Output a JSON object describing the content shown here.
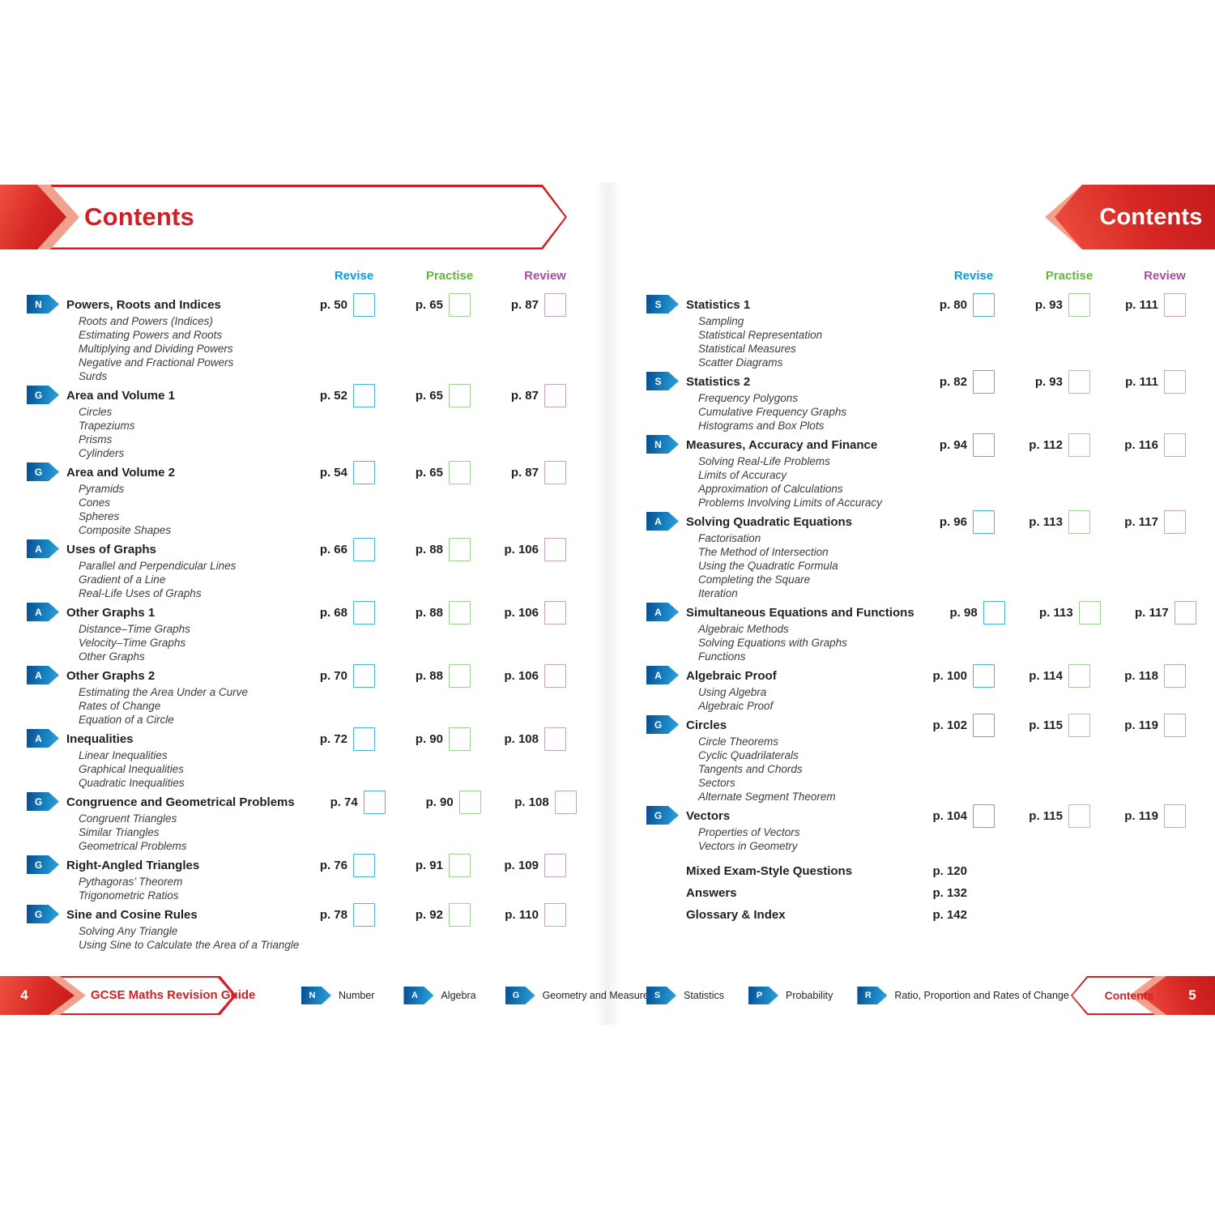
{
  "colors": {
    "red": "#d01f25",
    "red_light": "#f2a18e",
    "ink": "#231f20",
    "revise": "#0e9bd8",
    "practise": "#67b346",
    "review": "#a3509c",
    "badge_blue_dark": "#0a4c8c",
    "badge_blue_light": "#2ea5de",
    "checkbox_revise_border": "#45b5da",
    "checkbox_practise_border": "#9fcf92",
    "checkbox_review_border": "#c3a2c5"
  },
  "column_headers": [
    "Revise",
    "Practise",
    "Review"
  ],
  "left_page": {
    "header_title": "Contents",
    "entries": [
      {
        "badge": "N",
        "title": "Powers, Roots and Indices",
        "pages": [
          "p. 50",
          "p. 65",
          "p. 87"
        ],
        "subs": [
          "Roots and Powers (Indices)",
          "Estimating Powers and Roots",
          "Multiplying and Dividing Powers",
          "Negative and Fractional Powers",
          "Surds"
        ]
      },
      {
        "badge": "G",
        "title": "Area and Volume 1",
        "pages": [
          "p. 52",
          "p. 65",
          "p. 87"
        ],
        "subs": [
          "Circles",
          "Trapeziums",
          "Prisms",
          "Cylinders"
        ]
      },
      {
        "badge": "G",
        "title": "Area and Volume 2",
        "pages": [
          "p. 54",
          "p. 65",
          "p. 87"
        ],
        "subs": [
          "Pyramids",
          "Cones",
          "Spheres",
          "Composite Shapes"
        ]
      },
      {
        "badge": "A",
        "title": "Uses of Graphs",
        "pages": [
          "p. 66",
          "p. 88",
          "p. 106"
        ],
        "subs": [
          "Parallel and Perpendicular Lines",
          "Gradient of a Line",
          "Real-Life Uses of Graphs"
        ]
      },
      {
        "badge": "A",
        "title": "Other Graphs 1",
        "pages": [
          "p. 68",
          "p. 88",
          "p. 106"
        ],
        "subs": [
          "Distance–Time Graphs",
          "Velocity–Time Graphs",
          "Other Graphs"
        ]
      },
      {
        "badge": "A",
        "title": "Other Graphs 2",
        "pages": [
          "p. 70",
          "p. 88",
          "p. 106"
        ],
        "subs": [
          "Estimating the Area Under a Curve",
          "Rates of Change",
          "Equation of a Circle"
        ]
      },
      {
        "badge": "A",
        "title": "Inequalities",
        "pages": [
          "p. 72",
          "p. 90",
          "p. 108"
        ],
        "subs": [
          "Linear Inequalities",
          "Graphical Inequalities",
          "Quadratic Inequalities"
        ]
      },
      {
        "badge": "G",
        "title": "Congruence and Geometrical Problems",
        "pages": [
          "p. 74",
          "p. 90",
          "p. 108"
        ],
        "subs": [
          "Congruent Triangles",
          "Similar Triangles",
          "Geometrical Problems"
        ]
      },
      {
        "badge": "G",
        "title": "Right-Angled Triangles",
        "pages": [
          "p. 76",
          "p. 91",
          "p. 109"
        ],
        "subs": [
          "Pythagoras’ Theorem",
          "Trigonometric Ratios"
        ]
      },
      {
        "badge": "G",
        "title": "Sine and Cosine Rules",
        "pages": [
          "p. 78",
          "p. 92",
          "p. 110"
        ],
        "subs": [
          "Solving Any Triangle",
          "Using Sine to Calculate the Area of a Triangle"
        ]
      }
    ],
    "footer": {
      "page_number": "4",
      "banner_label": "GCSE Maths Revision Guide",
      "legend": [
        {
          "badge": "N",
          "label": "Number"
        },
        {
          "badge": "A",
          "label": "Algebra"
        },
        {
          "badge": "G",
          "label": "Geometry and Measures"
        }
      ]
    }
  },
  "right_page": {
    "header_title": "Contents",
    "entries": [
      {
        "badge": "S",
        "title": "Statistics 1",
        "pages": [
          "p. 80",
          "p. 93",
          "p. 111"
        ],
        "subs": [
          "Sampling",
          "Statistical Representation",
          "Statistical Measures",
          "Scatter Diagrams"
        ]
      },
      {
        "badge": "S",
        "title": "Statistics 2",
        "pages": [
          "p. 82",
          "p. 93",
          "p. 111"
        ],
        "subs": [
          "Frequency Polygons",
          "Cumulative Frequency Graphs",
          "Histograms and Box Plots"
        ]
      },
      {
        "badge": "N",
        "title": "Measures, Accuracy and Finance",
        "pages": [
          "p. 94",
          "p. 112",
          "p. 116"
        ],
        "subs": [
          "Solving Real-Life Problems",
          "Limits of Accuracy",
          "Approximation of Calculations",
          "Problems Involving Limits of Accuracy"
        ]
      },
      {
        "badge": "A",
        "title": "Solving Quadratic Equations",
        "pages": [
          "p. 96",
          "p. 113",
          "p. 117"
        ],
        "subs": [
          "Factorisation",
          "The Method of Intersection",
          "Using the Quadratic Formula",
          "Completing the Square",
          "Iteration"
        ]
      },
      {
        "badge": "A",
        "title": "Simultaneous Equations and Functions",
        "pages": [
          "p. 98",
          "p. 113",
          "p. 117"
        ],
        "subs": [
          "Algebraic Methods",
          "Solving Equations with Graphs",
          "Functions"
        ]
      },
      {
        "badge": "A",
        "title": "Algebraic Proof",
        "pages": [
          "p. 100",
          "p. 114",
          "p. 118"
        ],
        "subs": [
          "Using Algebra",
          "Algebraic Proof"
        ]
      },
      {
        "badge": "G",
        "title": "Circles",
        "pages": [
          "p. 102",
          "p. 115",
          "p. 119"
        ],
        "subs": [
          "Circle Theorems",
          "Cyclic Quadrilaterals",
          "Tangents and Chords",
          "Sectors",
          "Alternate Segment Theorem"
        ]
      },
      {
        "badge": "G",
        "title": "Vectors",
        "pages": [
          "p. 104",
          "p. 115",
          "p. 119"
        ],
        "subs": [
          "Properties of Vectors",
          "Vectors in Geometry"
        ]
      }
    ],
    "end_matter": [
      {
        "title": "Mixed Exam-Style Questions",
        "page": "p. 120"
      },
      {
        "title": "Answers",
        "page": "p. 132"
      },
      {
        "title": "Glossary & Index",
        "page": "p. 142"
      }
    ],
    "footer": {
      "page_number": "5",
      "banner_label": "Contents",
      "legend": [
        {
          "badge": "S",
          "label": "Statistics"
        },
        {
          "badge": "P",
          "label": "Probability"
        },
        {
          "badge": "R",
          "label": "Ratio, Proportion and Rates of Change"
        }
      ]
    }
  }
}
